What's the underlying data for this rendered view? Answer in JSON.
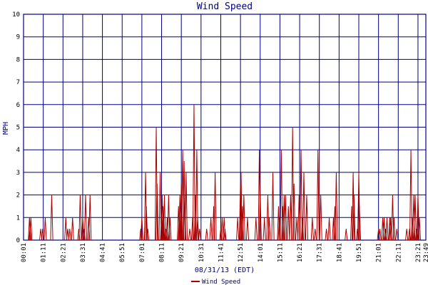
{
  "chart_data": {
    "type": "line",
    "title": "Wind Speed",
    "xlabel": "08/31/13 (EDT)",
    "ylabel": "MPH",
    "ylim": [
      0,
      10
    ],
    "yticks": [
      "0",
      "1",
      "2",
      "3",
      "4",
      "5",
      "6",
      "7",
      "8",
      "9",
      "10"
    ],
    "xlim": [
      "00:01",
      "23:49"
    ],
    "xticks": [
      "00:01",
      "01:11",
      "02:21",
      "03:31",
      "04:41",
      "05:51",
      "07:01",
      "08:11",
      "09:21",
      "10:31",
      "11:41",
      "12:51",
      "14:01",
      "15:11",
      "16:21",
      "17:31",
      "18:41",
      "19:51",
      "21:01",
      "22:11",
      "23:21",
      "23:49"
    ],
    "grid": true,
    "legend": "bottom",
    "colors": {
      "series": "#aa0000",
      "grid": "#000080",
      "text": "#000080"
    },
    "series": [
      {
        "name": "Wind Speed",
        "points": [
          [
            "00:22",
            1
          ],
          [
            "00:24",
            0.5
          ],
          [
            "00:27",
            1
          ],
          [
            "01:02",
            0.5
          ],
          [
            "01:09",
            0.5
          ],
          [
            "01:18",
            1
          ],
          [
            "01:41",
            2
          ],
          [
            "02:31",
            1
          ],
          [
            "02:38",
            0.5
          ],
          [
            "02:45",
            0.5
          ],
          [
            "02:55",
            1
          ],
          [
            "03:17",
            0.5
          ],
          [
            "03:22",
            2
          ],
          [
            "03:31",
            1
          ],
          [
            "03:36",
            0.5
          ],
          [
            "03:41",
            2
          ],
          [
            "03:52",
            1
          ],
          [
            "03:57",
            2
          ],
          [
            "06:57",
            0.5
          ],
          [
            "07:01",
            1
          ],
          [
            "07:14",
            3
          ],
          [
            "07:17",
            1.5
          ],
          [
            "07:22",
            0.5
          ],
          [
            "07:52",
            5
          ],
          [
            "07:55",
            2.5
          ],
          [
            "08:06",
            3
          ],
          [
            "08:11",
            1
          ],
          [
            "08:13",
            2
          ],
          [
            "08:16",
            1.5
          ],
          [
            "08:18",
            1
          ],
          [
            "08:21",
            2
          ],
          [
            "08:26",
            0.5
          ],
          [
            "08:31",
            1
          ],
          [
            "08:36",
            2
          ],
          [
            "08:41",
            1
          ],
          [
            "09:11",
            1.5
          ],
          [
            "09:14",
            1
          ],
          [
            "09:16",
            2
          ],
          [
            "09:19",
            1.5
          ],
          [
            "09:21",
            2.5
          ],
          [
            "09:26",
            4
          ],
          [
            "09:31",
            3.5
          ],
          [
            "09:33",
            2
          ],
          [
            "09:38",
            3
          ],
          [
            "09:51",
            0.5
          ],
          [
            "10:01",
            1
          ],
          [
            "10:06",
            6
          ],
          [
            "10:11",
            2
          ],
          [
            "10:16",
            4
          ],
          [
            "10:19",
            1
          ],
          [
            "10:26",
            0.5
          ],
          [
            "10:51",
            0.5
          ],
          [
            "11:06",
            1
          ],
          [
            "11:16",
            1.5
          ],
          [
            "11:21",
            3
          ],
          [
            "11:41",
            0.5
          ],
          [
            "11:46",
            1
          ],
          [
            "11:53",
            1
          ],
          [
            "11:56",
            0.5
          ],
          [
            "12:41",
            1
          ],
          [
            "12:51",
            2.5
          ],
          [
            "12:53",
            3
          ],
          [
            "12:58",
            1.5
          ],
          [
            "13:03",
            2
          ],
          [
            "13:16",
            1
          ],
          [
            "13:46",
            1
          ],
          [
            "13:58",
            4
          ],
          [
            "14:01",
            2
          ],
          [
            "14:16",
            1
          ],
          [
            "14:28",
            2
          ],
          [
            "14:33",
            1
          ],
          [
            "14:46",
            3
          ],
          [
            "15:06",
            1.5
          ],
          [
            "15:09",
            1
          ],
          [
            "15:16",
            4
          ],
          [
            "15:21",
            1.5
          ],
          [
            "15:26",
            2
          ],
          [
            "15:31",
            2
          ],
          [
            "15:41",
            1.5
          ],
          [
            "15:49",
            2
          ],
          [
            "15:56",
            5
          ],
          [
            "16:01",
            2.5
          ],
          [
            "16:11",
            1
          ],
          [
            "16:19",
            2
          ],
          [
            "16:26",
            4
          ],
          [
            "16:31",
            1
          ],
          [
            "16:36",
            3
          ],
          [
            "16:46",
            2
          ],
          [
            "17:06",
            1
          ],
          [
            "17:16",
            0.5
          ],
          [
            "17:26",
            4
          ],
          [
            "17:36",
            2
          ],
          [
            "17:56",
            0.5
          ],
          [
            "18:06",
            1
          ],
          [
            "18:21",
            1
          ],
          [
            "18:26",
            1.5
          ],
          [
            "18:31",
            3
          ],
          [
            "19:06",
            0.5
          ],
          [
            "19:26",
            1.5
          ],
          [
            "19:31",
            3
          ],
          [
            "19:34",
            2
          ],
          [
            "19:46",
            0.5
          ],
          [
            "19:51",
            3
          ],
          [
            "19:53",
            1.5
          ],
          [
            "21:01",
            0.5
          ],
          [
            "21:06",
            0.5
          ],
          [
            "21:16",
            1
          ],
          [
            "21:21",
            1
          ],
          [
            "21:26",
            0.5
          ],
          [
            "21:31",
            1
          ],
          [
            "21:41",
            1
          ],
          [
            "21:44",
            1
          ],
          [
            "21:51",
            2
          ],
          [
            "21:56",
            1
          ],
          [
            "22:06",
            0.5
          ],
          [
            "22:41",
            0.5
          ],
          [
            "22:51",
            0.5
          ],
          [
            "22:56",
            4
          ],
          [
            "23:01",
            1
          ],
          [
            "23:06",
            2
          ],
          [
            "23:11",
            2
          ],
          [
            "23:16",
            0.5
          ],
          [
            "23:21",
            2
          ],
          [
            "23:26",
            1
          ]
        ]
      }
    ]
  }
}
